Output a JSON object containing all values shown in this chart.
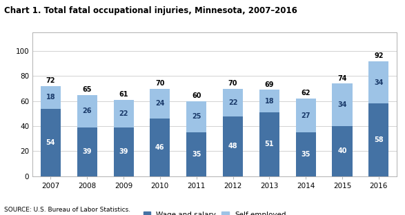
{
  "title": "Chart 1. Total fatal occupational injuries, Minnesota, 2007–2016",
  "years": [
    2007,
    2008,
    2009,
    2010,
    2011,
    2012,
    2013,
    2014,
    2015,
    2016
  ],
  "wage_and_salary": [
    54,
    39,
    39,
    46,
    35,
    48,
    51,
    35,
    40,
    58
  ],
  "self_employed": [
    18,
    26,
    22,
    24,
    25,
    22,
    18,
    27,
    34,
    34
  ],
  "totals": [
    72,
    65,
    61,
    70,
    60,
    70,
    69,
    62,
    74,
    92
  ],
  "wage_color": "#4472A4",
  "self_color": "#9DC3E6",
  "ylim": [
    0,
    115
  ],
  "yticks": [
    0,
    20,
    40,
    60,
    80,
    100
  ],
  "legend_wage": "Wage and salary",
  "legend_self": "Self-employed",
  "source": "SOURCE: U.S. Bureau of Labor Statistics.",
  "bar_width": 0.55
}
